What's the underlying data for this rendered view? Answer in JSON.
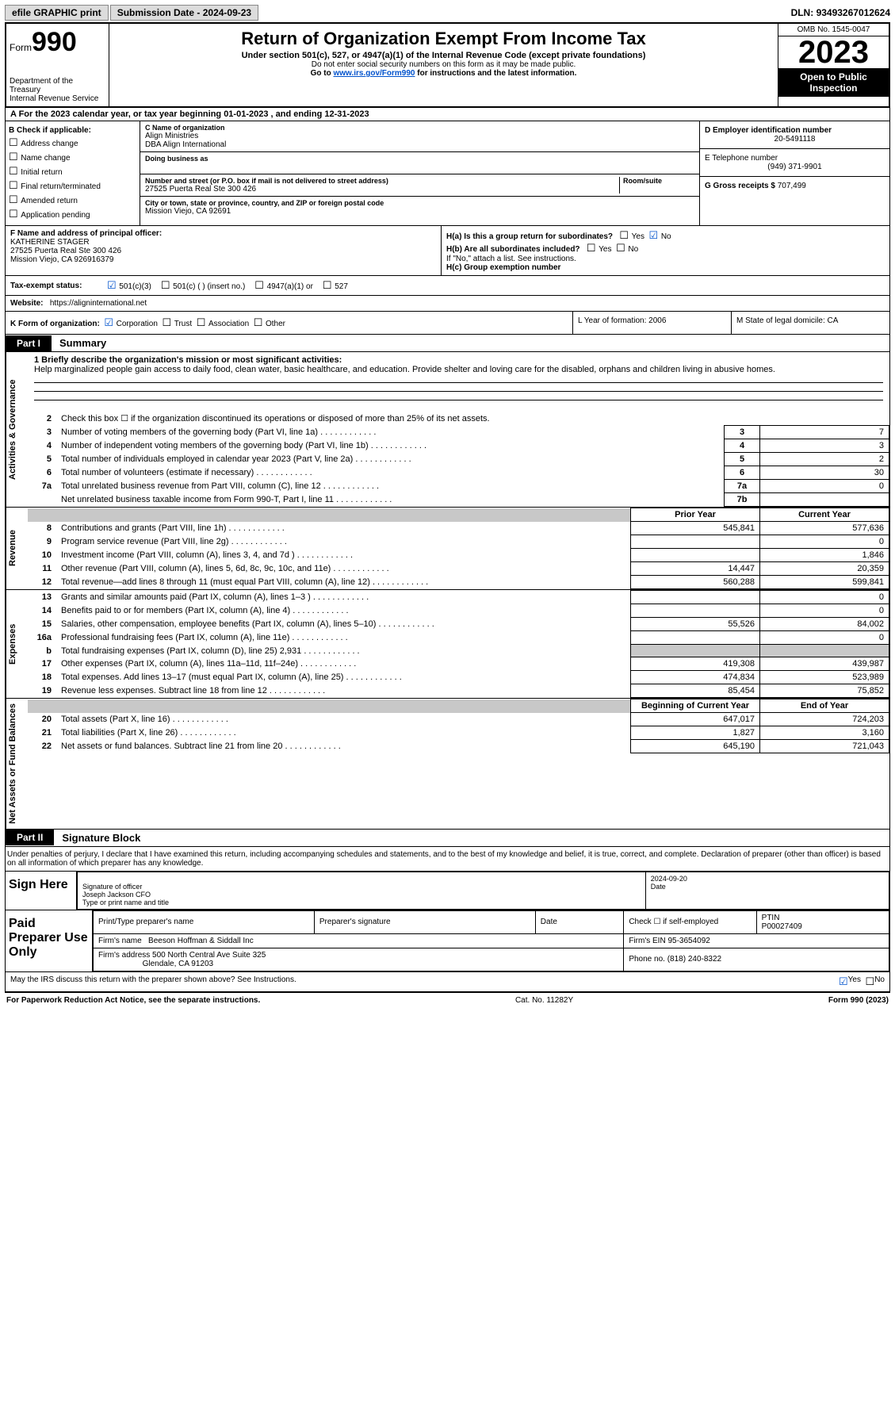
{
  "topbar": {
    "efile": "efile GRAPHIC print",
    "subdate_label": "Submission Date - ",
    "subdate": "2024-09-23",
    "dln_label": "DLN: ",
    "dln": "93493267012624"
  },
  "header": {
    "form_label": "Form",
    "form_no": "990",
    "dept": "Department of the Treasury\nInternal Revenue Service",
    "title": "Return of Organization Exempt From Income Tax",
    "sub": "Under section 501(c), 527, or 4947(a)(1) of the Internal Revenue Code (except private foundations)",
    "l2": "Do not enter social security numbers on this form as it may be made public.",
    "l3_pre": "Go to ",
    "l3_link": "www.irs.gov/Form990",
    "l3_post": " for instructions and the latest information.",
    "omb": "OMB No. 1545-0047",
    "year": "2023",
    "open": "Open to Public Inspection"
  },
  "rowA": "A For the 2023 calendar year, or tax year beginning 01-01-2023   , and ending 12-31-2023",
  "colB": {
    "hdr": "B Check if applicable:",
    "items": [
      "Address change",
      "Name change",
      "Initial return",
      "Final return/terminated",
      "Amended return",
      "Application pending"
    ]
  },
  "colC": {
    "name_label": "C Name of organization",
    "name1": "Align Ministries",
    "name2": "DBA Align International",
    "dba_label": "Doing business as",
    "addr_label": "Number and street (or P.O. box if mail is not delivered to street address)",
    "room_label": "Room/suite",
    "addr": "27525 Puerta Real Ste 300 426",
    "city_label": "City or town, state or province, country, and ZIP or foreign postal code",
    "city": "Mission Viejo, CA  92691"
  },
  "colD": {
    "ein_label": "D Employer identification number",
    "ein": "20-5491118",
    "tel_label": "E Telephone number",
    "tel": "(949) 371-9901",
    "gross_label": "G Gross receipts $ ",
    "gross": "707,499"
  },
  "rowF": {
    "label": "F Name and address of principal officer:",
    "name": "KATHERINE STAGER",
    "addr1": "27525 Puerta Real Ste 300 426",
    "addr2": "Mission Viejo, CA  926916379"
  },
  "rowH": {
    "a": "H(a)  Is this a group return for subordinates?",
    "a_yes": "Yes",
    "a_no": "No",
    "b": "H(b)  Are all subordinates included?",
    "b_yes": "Yes",
    "b_no": "No",
    "b_note": "If \"No,\" attach a list. See instructions.",
    "c": "H(c)  Group exemption number  "
  },
  "rowI": {
    "label": "Tax-exempt status:",
    "o1": "501(c)(3)",
    "o2": "501(c) (  ) (insert no.)",
    "o3": "4947(a)(1) or",
    "o4": "527"
  },
  "rowJ": {
    "label": "Website: ",
    "val": "https://aligninternational.net"
  },
  "rowK": {
    "label": "K Form of organization:",
    "o1": "Corporation",
    "o2": "Trust",
    "o3": "Association",
    "o4": "Other",
    "L": "L Year of formation: 2006",
    "M": "M State of legal domicile: CA"
  },
  "part1": {
    "tag": "Part I",
    "title": "Summary"
  },
  "sections": {
    "gov": "Activities & Governance",
    "rev": "Revenue",
    "exp": "Expenses",
    "net": "Net Assets or Fund Balances"
  },
  "mission": {
    "q": "1  Briefly describe the organization's mission or most significant activities:",
    "text": "Help marginalized people gain access to daily food, clean water, basic healthcare, and education. Provide shelter and loving care for the disabled, orphans and children living in abusive homes."
  },
  "line2": "Check this box  ☐  if the organization discontinued its operations or disposed of more than 25% of its net assets.",
  "lines_gov": [
    {
      "n": "3",
      "d": "Number of voting members of the governing body (Part VI, line 1a)",
      "box": "3",
      "v": "7"
    },
    {
      "n": "4",
      "d": "Number of independent voting members of the governing body (Part VI, line 1b)",
      "box": "4",
      "v": "3"
    },
    {
      "n": "5",
      "d": "Total number of individuals employed in calendar year 2023 (Part V, line 2a)",
      "box": "5",
      "v": "2"
    },
    {
      "n": "6",
      "d": "Total number of volunteers (estimate if necessary)",
      "box": "6",
      "v": "30"
    },
    {
      "n": "7a",
      "d": "Total unrelated business revenue from Part VIII, column (C), line 12",
      "box": "7a",
      "v": "0"
    },
    {
      "n": "",
      "d": "Net unrelated business taxable income from Form 990-T, Part I, line 11",
      "box": "7b",
      "v": ""
    }
  ],
  "cols": {
    "prior": "Prior Year",
    "current": "Current Year",
    "boy": "Beginning of Current Year",
    "eoy": "End of Year"
  },
  "lines_rev": [
    {
      "n": "8",
      "d": "Contributions and grants (Part VIII, line 1h)",
      "p": "545,841",
      "c": "577,636"
    },
    {
      "n": "9",
      "d": "Program service revenue (Part VIII, line 2g)",
      "p": "",
      "c": "0"
    },
    {
      "n": "10",
      "d": "Investment income (Part VIII, column (A), lines 3, 4, and 7d )",
      "p": "",
      "c": "1,846"
    },
    {
      "n": "11",
      "d": "Other revenue (Part VIII, column (A), lines 5, 6d, 8c, 9c, 10c, and 11e)",
      "p": "14,447",
      "c": "20,359"
    },
    {
      "n": "12",
      "d": "Total revenue—add lines 8 through 11 (must equal Part VIII, column (A), line 12)",
      "p": "560,288",
      "c": "599,841"
    }
  ],
  "lines_exp": [
    {
      "n": "13",
      "d": "Grants and similar amounts paid (Part IX, column (A), lines 1–3 )",
      "p": "",
      "c": "0"
    },
    {
      "n": "14",
      "d": "Benefits paid to or for members (Part IX, column (A), line 4)",
      "p": "",
      "c": "0"
    },
    {
      "n": "15",
      "d": "Salaries, other compensation, employee benefits (Part IX, column (A), lines 5–10)",
      "p": "55,526",
      "c": "84,002"
    },
    {
      "n": "16a",
      "d": "Professional fundraising fees (Part IX, column (A), line 11e)",
      "p": "",
      "c": "0"
    },
    {
      "n": "b",
      "d": "Total fundraising expenses (Part IX, column (D), line 25) 2,931",
      "p": "shade",
      "c": "shade"
    },
    {
      "n": "17",
      "d": "Other expenses (Part IX, column (A), lines 11a–11d, 11f–24e)",
      "p": "419,308",
      "c": "439,987"
    },
    {
      "n": "18",
      "d": "Total expenses. Add lines 13–17 (must equal Part IX, column (A), line 25)",
      "p": "474,834",
      "c": "523,989"
    },
    {
      "n": "19",
      "d": "Revenue less expenses. Subtract line 18 from line 12",
      "p": "85,454",
      "c": "75,852"
    }
  ],
  "lines_net": [
    {
      "n": "20",
      "d": "Total assets (Part X, line 16)",
      "p": "647,017",
      "c": "724,203"
    },
    {
      "n": "21",
      "d": "Total liabilities (Part X, line 26)",
      "p": "1,827",
      "c": "3,160"
    },
    {
      "n": "22",
      "d": "Net assets or fund balances. Subtract line 21 from line 20",
      "p": "645,190",
      "c": "721,043"
    }
  ],
  "part2": {
    "tag": "Part II",
    "title": "Signature Block"
  },
  "sig_intro": "Under penalties of perjury, I declare that I have examined this return, including accompanying schedules and statements, and to the best of my knowledge and belief, it is true, correct, and complete. Declaration of preparer (other than officer) is based on all information of which preparer has any knowledge.",
  "sign": {
    "here": "Sign Here",
    "sig_label": "Signature of officer",
    "date": "2024-09-20",
    "date_label": "Date",
    "name": "Joseph Jackson CFO",
    "name_label": "Type or print name and title"
  },
  "paid": {
    "title": "Paid Preparer Use Only",
    "pt_label": "Print/Type preparer's name",
    "ps_label": "Preparer's signature",
    "date_label": "Date",
    "check_label": "Check ☐ if self-employed",
    "ptin_label": "PTIN",
    "ptin": "P00027409",
    "firm_label": "Firm's name   ",
    "firm": "Beeson Hoffman & Siddall Inc",
    "ein_label": "Firm's EIN  ",
    "ein": "95-3654092",
    "addr_label": "Firm's address ",
    "addr1": "500 North Central Ave Suite 325",
    "addr2": "Glendale, CA  91203",
    "phone_label": "Phone no. ",
    "phone": "(818) 240-8322"
  },
  "discuss": {
    "q": "May the IRS discuss this return with the preparer shown above? See Instructions.",
    "yes": "Yes",
    "no": "No"
  },
  "footer": {
    "pra": "For Paperwork Reduction Act Notice, see the separate instructions.",
    "cat": "Cat. No. 11282Y",
    "form": "Form 990 (2023)"
  }
}
